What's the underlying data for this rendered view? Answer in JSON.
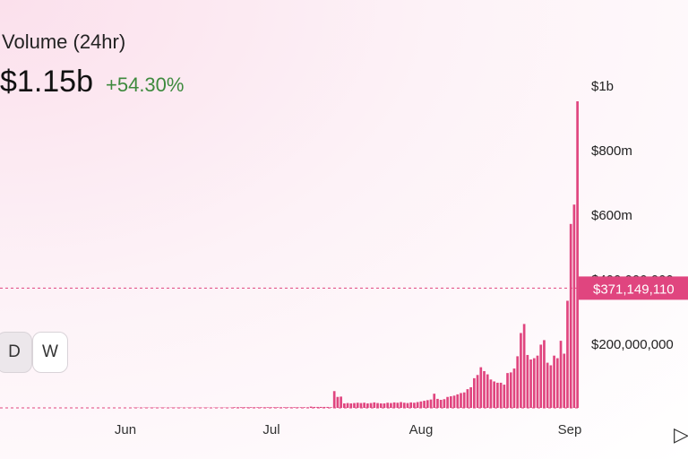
{
  "header": {
    "title": "Volume (24hr)",
    "value": "$1.15b",
    "change": "+54.30%"
  },
  "timeframes": [
    "D",
    "W"
  ],
  "current_label": "$371,149,110",
  "colors": {
    "bar": "#e0457f",
    "accent": "#e0457f",
    "positive": "#3e8a3e"
  },
  "chart_data": {
    "type": "bar",
    "title": "",
    "xlabel": "",
    "ylabel": "",
    "x_tick_labels": [
      "Jun",
      "Jul",
      "Aug",
      "Sep"
    ],
    "y_tick_labels": [
      "$1b",
      "$800m",
      "$600m",
      "$400,000,000",
      "$200,000,000"
    ],
    "y_tick_values": [
      1000000000,
      800000000,
      600000000,
      400000000,
      200000000
    ],
    "ylim": [
      0,
      1000000000
    ],
    "reference_line": 371149110,
    "values_millions": [
      0,
      0,
      0,
      0,
      0,
      0,
      0,
      0,
      0,
      0,
      0,
      0,
      0,
      0,
      0,
      0,
      0,
      0,
      0,
      0,
      0,
      0,
      0,
      0,
      0,
      0,
      0,
      0,
      0,
      0,
      0,
      0,
      0,
      0,
      0,
      0,
      0,
      0,
      0,
      0,
      1,
      1,
      1,
      1,
      1,
      1,
      1,
      1,
      1,
      1,
      1,
      1,
      1,
      1,
      1,
      1,
      1,
      1,
      1,
      1,
      1,
      1,
      1,
      1,
      1,
      1,
      1,
      1,
      1,
      1,
      2,
      2,
      2,
      2,
      2,
      2,
      2,
      2,
      2,
      2,
      2,
      2,
      2,
      2,
      2,
      2,
      2,
      2,
      2,
      2,
      2,
      2,
      2,
      4,
      3,
      3,
      3,
      3,
      3,
      2,
      52,
      34,
      35,
      14,
      15,
      14,
      15,
      16,
      15,
      16,
      14,
      15,
      17,
      15,
      14,
      14,
      16,
      15,
      17,
      16,
      18,
      16,
      15,
      17,
      16,
      18,
      20,
      22,
      24,
      26,
      44,
      28,
      25,
      27,
      34,
      36,
      38,
      42,
      46,
      48,
      58,
      64,
      92,
      102,
      126,
      114,
      104,
      88,
      82,
      78,
      78,
      72,
      108,
      110,
      122,
      160,
      232,
      260,
      164,
      150,
      154,
      162,
      196,
      210,
      140,
      132,
      162,
      154,
      208,
      168,
      332,
      570,
      630,
      950
    ]
  }
}
